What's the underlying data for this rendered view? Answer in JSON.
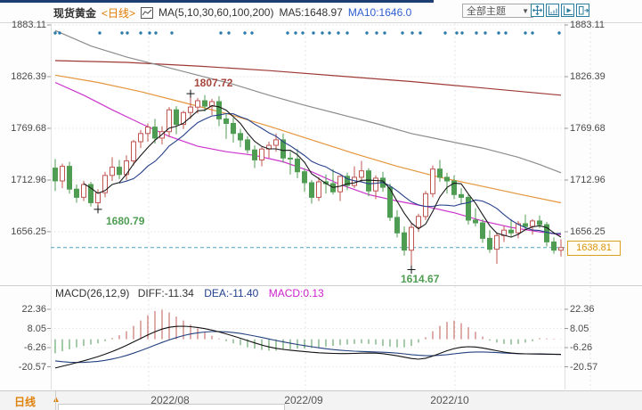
{
  "header": {
    "symbol": "现货黄金",
    "period": "<日线>",
    "ma_group_label": "MA(5,10,30,60,100,200)",
    "ma5_label": "MA5:1648.97",
    "ma10_label": "MA10:1646.0",
    "theme_dropdown": "全部主题",
    "dropdown_arrow": "▼"
  },
  "toolbar_icons": [
    "move-crosshair-icon",
    "axis-chart-icon",
    "axis-play-icon",
    "pane-export-icon"
  ],
  "annotations": {
    "high": "1807.72",
    "low1": "1680.79",
    "low2": "1614.67"
  },
  "current_price": "1638.81",
  "macd_header": {
    "name": "MACD(26,12,9)",
    "diff": "DIFF:-11.34",
    "dea": "DEA:-11.40",
    "macd": "MACD:0.13"
  },
  "bottom": {
    "tab": "日线",
    "tab_arrow": "▲",
    "dates": [
      "2022/08",
      "2022/09",
      "2022/10"
    ]
  },
  "colors": {
    "up_candle": "#bf5552",
    "down_candle": "#4f9d53",
    "ma5": "#1a1a1a",
    "ma10": "#27408b",
    "ma30": "#cc33cc",
    "ma60": "#e5963c",
    "ma100": "#8c8c8c",
    "ma200": "#9e3a36",
    "macd_red": "#c25853",
    "macd_green": "#4a9a4f",
    "diff_line": "#111111",
    "dea_line": "#24417f",
    "dashed_price_line": "#4da0c0",
    "event_dot": "#2d7ba8",
    "accent_orange": "#e07b00",
    "toolbar_teal": "#2b7d9e"
  },
  "chart_data": {
    "type": "candlestick+macd",
    "title": "现货黄金 日线",
    "y_axis": {
      "labels": [
        1883.11,
        1826.39,
        1769.68,
        1712.96,
        1656.25
      ]
    },
    "macd_axis": {
      "labels": [
        22.36,
        8.05,
        -6.26,
        -20.57
      ]
    },
    "last_price": 1638.81,
    "candles": [
      [
        1726,
        1736,
        1701,
        1712
      ],
      [
        1712,
        1731,
        1704,
        1728
      ],
      [
        1728,
        1733,
        1698,
        1703
      ],
      [
        1703,
        1708,
        1688,
        1694
      ],
      [
        1694,
        1712,
        1690,
        1708
      ],
      [
        1708,
        1711,
        1684,
        1688
      ],
      [
        1688,
        1703,
        1680.79,
        1699
      ],
      [
        1699,
        1722,
        1694,
        1718
      ],
      [
        1718,
        1738,
        1712,
        1727
      ],
      [
        1727,
        1735,
        1714,
        1719
      ],
      [
        1719,
        1740,
        1713,
        1734
      ],
      [
        1734,
        1757,
        1729,
        1755
      ],
      [
        1755,
        1768,
        1748,
        1764
      ],
      [
        1764,
        1775,
        1755,
        1771
      ],
      [
        1771,
        1780,
        1753,
        1759
      ],
      [
        1759,
        1772,
        1752,
        1766
      ],
      [
        1766,
        1793,
        1760,
        1790
      ],
      [
        1790,
        1794,
        1763,
        1774
      ],
      [
        1774,
        1789,
        1769,
        1787
      ],
      [
        1787,
        1807.72,
        1780,
        1793
      ],
      [
        1793,
        1803,
        1786,
        1800
      ],
      [
        1800,
        1806,
        1788,
        1794
      ],
      [
        1794,
        1802,
        1784,
        1799
      ],
      [
        1799,
        1805,
        1772,
        1780
      ],
      [
        1780,
        1785,
        1758,
        1775
      ],
      [
        1775,
        1781,
        1754,
        1764
      ],
      [
        1764,
        1769,
        1749,
        1757
      ],
      [
        1757,
        1761,
        1742,
        1746
      ],
      [
        1746,
        1751,
        1726,
        1735
      ],
      [
        1735,
        1749,
        1728,
        1747
      ],
      [
        1747,
        1755,
        1737,
        1751
      ],
      [
        1751,
        1764,
        1744,
        1757
      ],
      [
        1757,
        1764,
        1732,
        1737
      ],
      [
        1737,
        1744,
        1719,
        1736
      ],
      [
        1736,
        1747,
        1715,
        1722
      ],
      [
        1722,
        1726,
        1700,
        1710
      ],
      [
        1710,
        1713,
        1687,
        1694
      ],
      [
        1694,
        1716,
        1690,
        1711
      ],
      [
        1711,
        1719,
        1698,
        1709
      ],
      [
        1709,
        1725,
        1697,
        1700
      ],
      [
        1700,
        1718,
        1690,
        1717
      ],
      [
        1717,
        1721,
        1702,
        1707
      ],
      [
        1707,
        1728,
        1704,
        1716
      ],
      [
        1716,
        1734,
        1711,
        1723
      ],
      [
        1723,
        1726,
        1695,
        1701
      ],
      [
        1701,
        1718,
        1692,
        1715
      ],
      [
        1715,
        1722,
        1700,
        1705
      ],
      [
        1705,
        1709,
        1668,
        1672
      ],
      [
        1672,
        1680,
        1650,
        1655
      ],
      [
        1655,
        1662,
        1630,
        1636
      ],
      [
        1636,
        1665,
        1614.67,
        1661
      ],
      [
        1661,
        1676,
        1656,
        1673
      ],
      [
        1673,
        1701,
        1669,
        1698
      ],
      [
        1698,
        1729,
        1694,
        1725
      ],
      [
        1725,
        1735,
        1711,
        1716
      ],
      [
        1716,
        1721,
        1698,
        1712
      ],
      [
        1712,
        1718,
        1692,
        1697
      ],
      [
        1697,
        1704,
        1686,
        1694
      ],
      [
        1694,
        1697,
        1664,
        1669
      ],
      [
        1669,
        1682,
        1662,
        1666
      ],
      [
        1666,
        1670,
        1644,
        1649
      ],
      [
        1649,
        1658,
        1633,
        1637
      ],
      [
        1637,
        1655,
        1621,
        1652
      ],
      [
        1652,
        1663,
        1645,
        1658
      ],
      [
        1658,
        1670,
        1650,
        1655
      ],
      [
        1655,
        1668,
        1649,
        1665
      ],
      [
        1665,
        1675,
        1658,
        1662
      ],
      [
        1662,
        1670,
        1653,
        1668
      ],
      [
        1668,
        1674,
        1660,
        1664
      ],
      [
        1664,
        1667,
        1640,
        1645
      ],
      [
        1645,
        1650,
        1632,
        1636
      ],
      [
        1636,
        1648,
        1629,
        1638.81
      ]
    ],
    "markers": {
      "high": {
        "index": 19,
        "price": 1807.72
      },
      "low1": {
        "index": 6,
        "price": 1680.79
      },
      "low2": {
        "index": 50,
        "price": 1614.67
      }
    },
    "ma_overlays": [
      {
        "name": "MA200",
        "color": "#9e3a36",
        "points": [
          [
            0,
            1844
          ],
          [
            10,
            1842
          ],
          [
            20,
            1838
          ],
          [
            30,
            1833
          ],
          [
            40,
            1827
          ],
          [
            50,
            1821
          ],
          [
            60,
            1814
          ],
          [
            71,
            1806
          ]
        ]
      },
      {
        "name": "MA100",
        "color": "#8c8c8c",
        "points": [
          [
            0,
            1877
          ],
          [
            5,
            1860
          ],
          [
            10,
            1848
          ],
          [
            15,
            1838
          ],
          [
            20,
            1828
          ],
          [
            25,
            1818
          ],
          [
            30,
            1806
          ],
          [
            35,
            1795
          ],
          [
            40,
            1785
          ],
          [
            45,
            1775
          ],
          [
            50,
            1764
          ],
          [
            55,
            1756
          ],
          [
            60,
            1748
          ],
          [
            65,
            1738
          ],
          [
            68,
            1730
          ],
          [
            71,
            1721
          ]
        ]
      },
      {
        "name": "MA60",
        "color": "#e5963c",
        "points": [
          [
            0,
            1828
          ],
          [
            6,
            1820
          ],
          [
            12,
            1810
          ],
          [
            18,
            1798
          ],
          [
            24,
            1786
          ],
          [
            30,
            1772
          ],
          [
            36,
            1757
          ],
          [
            42,
            1742
          ],
          [
            48,
            1728
          ],
          [
            54,
            1716
          ],
          [
            60,
            1706
          ],
          [
            66,
            1696
          ],
          [
            71,
            1688
          ]
        ]
      },
      {
        "name": "MA30",
        "color": "#cc33cc",
        "points": [
          [
            0,
            1820
          ],
          [
            4,
            1806
          ],
          [
            8,
            1790
          ],
          [
            12,
            1775
          ],
          [
            16,
            1761
          ],
          [
            20,
            1750
          ],
          [
            24,
            1744
          ],
          [
            28,
            1740
          ],
          [
            32,
            1733
          ],
          [
            36,
            1722
          ],
          [
            40,
            1708
          ],
          [
            44,
            1697
          ],
          [
            48,
            1690
          ],
          [
            52,
            1684
          ],
          [
            56,
            1677
          ],
          [
            60,
            1668
          ],
          [
            64,
            1661
          ],
          [
            68,
            1656
          ],
          [
            71,
            1653
          ]
        ]
      }
    ],
    "event_dot_x": [
      62,
      67,
      112,
      137,
      143,
      158,
      168,
      175,
      193,
      248,
      257,
      275,
      283,
      323,
      332,
      340,
      352,
      362,
      370,
      380,
      390,
      412,
      423,
      432,
      452,
      463,
      472,
      500,
      513,
      519,
      535,
      545,
      560,
      568,
      590,
      598,
      628
    ],
    "month_gridline_x": [
      167,
      343,
      511,
      663
    ],
    "date_label_x": [
      191,
      341,
      505
    ],
    "macd": {
      "diff": [
        -21.5,
        -20.2,
        -18.9,
        -17.5,
        -16.1,
        -14.6,
        -13.0,
        -11.2,
        -9.2,
        -7.0,
        -4.6,
        -2.0,
        0.6,
        3.2,
        5.6,
        7.6,
        8.9,
        9.6,
        9.7,
        9.4,
        8.8,
        7.9,
        6.8,
        5.5,
        4.0,
        2.4,
        0.7,
        -1.0,
        -2.7,
        -4.3,
        -5.7,
        -6.8,
        -7.6,
        -8.2,
        -8.7,
        -9.2,
        -9.7,
        -10.1,
        -10.4,
        -10.6,
        -10.7,
        -10.7,
        -10.6,
        -10.4,
        -10.3,
        -10.4,
        -10.8,
        -11.5,
        -12.4,
        -13.4,
        -14.4,
        -14.9,
        -14.2,
        -12.6,
        -10.6,
        -8.6,
        -7.0,
        -6.0,
        -5.6,
        -5.8,
        -6.5,
        -7.5,
        -8.6,
        -9.6,
        -10.3,
        -10.7,
        -10.9,
        -11.0,
        -11.0,
        -11.1,
        -11.2,
        -11.34
      ],
      "dea": [
        -16.2,
        -16.8,
        -17.2,
        -17.4,
        -17.3,
        -17.0,
        -16.5,
        -15.8,
        -14.8,
        -13.6,
        -12.1,
        -10.4,
        -8.5,
        -6.5,
        -4.4,
        -2.4,
        -0.5,
        1.2,
        2.7,
        3.9,
        4.8,
        5.4,
        5.7,
        5.7,
        5.5,
        5.0,
        4.3,
        3.4,
        2.4,
        1.3,
        0.2,
        -0.9,
        -2.0,
        -3.0,
        -3.9,
        -4.8,
        -5.6,
        -6.4,
        -7.1,
        -7.7,
        -8.2,
        -8.6,
        -8.9,
        -9.1,
        -9.3,
        -9.5,
        -9.7,
        -10.0,
        -10.4,
        -10.9,
        -11.5,
        -12.0,
        -12.3,
        -12.3,
        -12.0,
        -11.5,
        -10.9,
        -10.3,
        -9.8,
        -9.5,
        -9.5,
        -9.7,
        -10.0,
        -10.3,
        -10.6,
        -10.8,
        -10.9,
        -11.0,
        -11.1,
        -11.2,
        -11.3,
        -11.4
      ],
      "bars": [
        -10.5,
        -9,
        -7.5,
        -6,
        -5,
        -4,
        -3,
        -1.5,
        1,
        3,
        6,
        10,
        14,
        18,
        21,
        22,
        20,
        17,
        14,
        11,
        8,
        5,
        2.5,
        0.5,
        -1.5,
        -3,
        -4.5,
        -6,
        -7,
        -8,
        -8.5,
        -8.5,
        -8,
        -7.5,
        -7,
        -7,
        -6.5,
        -6,
        -5.5,
        -5,
        -4.5,
        -4,
        -3.5,
        -3,
        -3.5,
        -4,
        -5,
        -5.5,
        -6,
        -6,
        -5,
        -2.5,
        1.5,
        6,
        10,
        13,
        14,
        12,
        9,
        5.5,
        2,
        -1,
        -2.5,
        -3.5,
        -4,
        -3.5,
        -2.5,
        -1.5,
        0.8,
        0.6,
        0.4,
        0.13
      ]
    }
  }
}
